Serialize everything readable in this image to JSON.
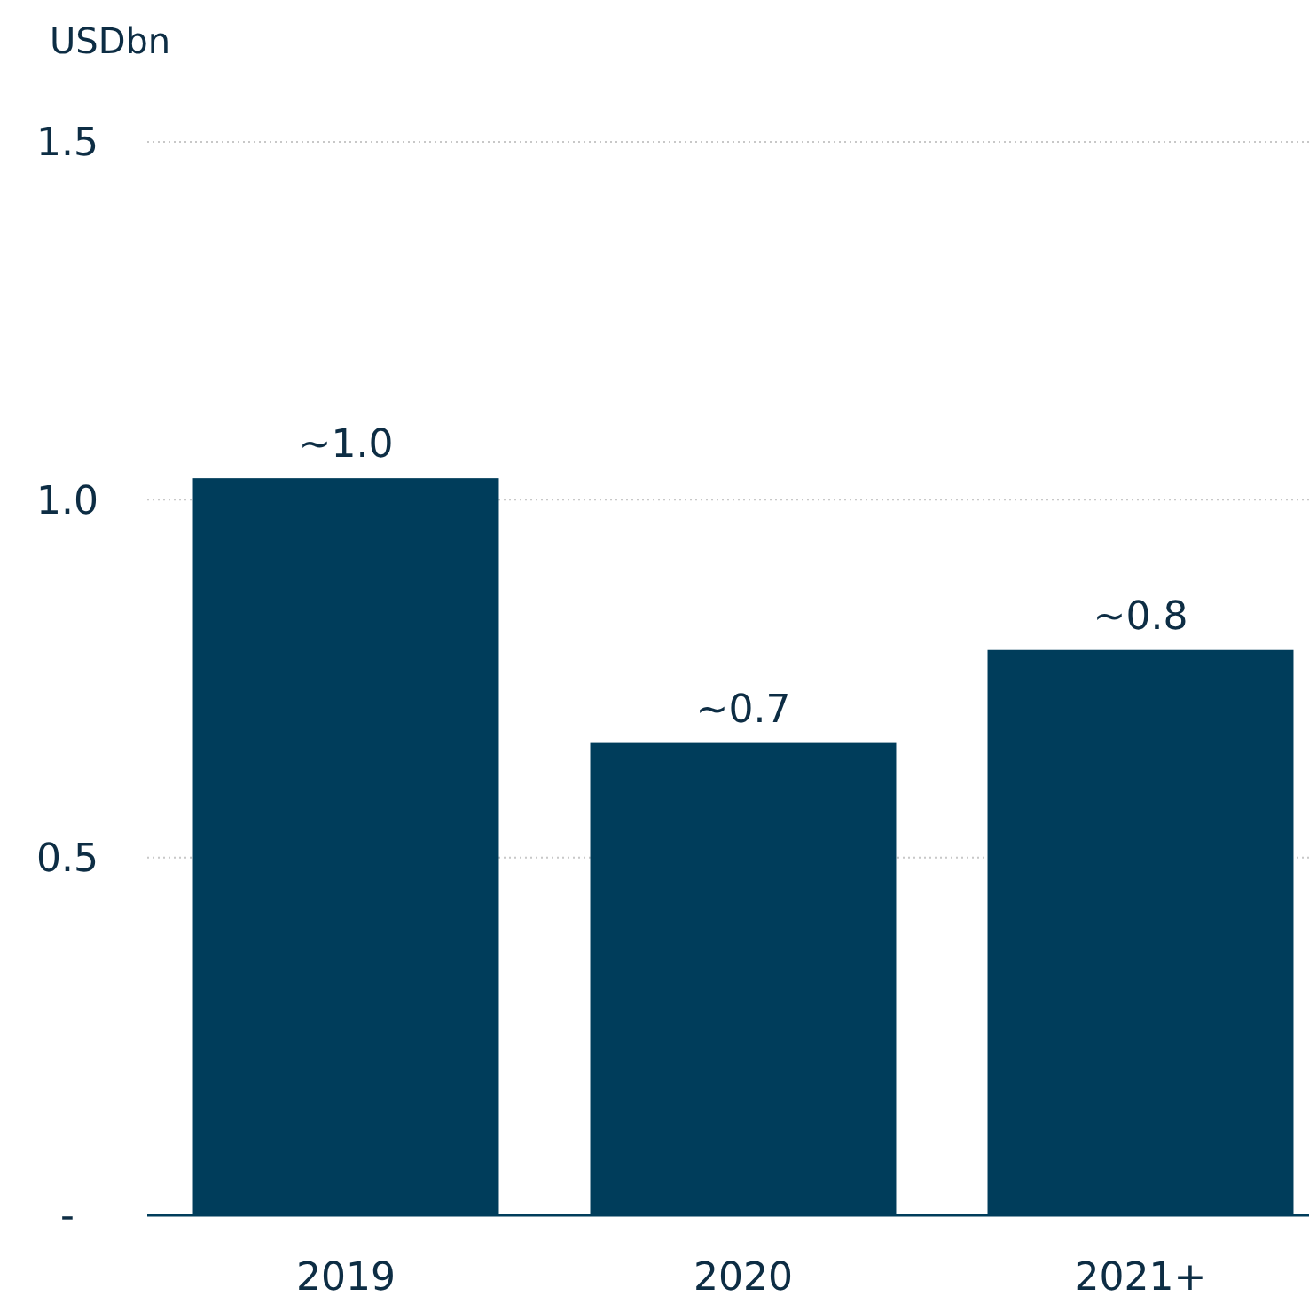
{
  "chart_data": {
    "type": "bar",
    "ylabel": "USDbn",
    "categories": [
      "2019",
      "2020",
      "2021+"
    ],
    "values": [
      1.03,
      0.66,
      0.79
    ],
    "value_labels": [
      "~1.0",
      "~0.7",
      "~0.8"
    ],
    "color": "#003d5b",
    "ylim": [
      0,
      1.5
    ],
    "yticks": [
      {
        "value": 0,
        "label": "-"
      },
      0.5,
      {
        "value": 1,
        "label": "1.0"
      },
      1.5
    ],
    "grid": "y"
  }
}
